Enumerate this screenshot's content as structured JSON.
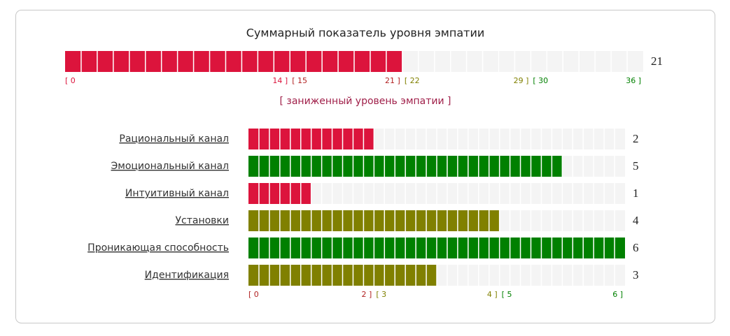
{
  "total": {
    "title": "Суммарный показатель уровня эмпатии",
    "value": 21,
    "value_label": "21",
    "scale": [
      {
        "start": {
          "value": 0,
          "label": "[ 0"
        },
        "end": {
          "value": 14,
          "label": "14 ]"
        },
        "color": "#dc143c"
      },
      {
        "start": {
          "value": 15,
          "label": "[ 15"
        },
        "end": {
          "value": 21,
          "label": "21 ]"
        },
        "color": "#b22222"
      },
      {
        "start": {
          "value": 22,
          "label": "[ 22"
        },
        "end": {
          "value": 29,
          "label": "29 ]"
        },
        "color": "#808000"
      },
      {
        "start": {
          "value": 30,
          "label": "[ 30"
        },
        "end": {
          "value": 36,
          "label": "36 ]"
        },
        "color": "#008000"
      }
    ],
    "bar_color": "#dc143c",
    "level": "[ заниженный уровень эмпатии ]",
    "level_color": "#a0204a"
  },
  "subscales": {
    "rows": [
      {
        "name": "Рациональный канал",
        "value": 2,
        "color": "#dc143c"
      },
      {
        "name": "Эмоциональный канал",
        "value": 5,
        "color": "#008000"
      },
      {
        "name": "Интуитивный канал",
        "value": 1,
        "color": "#dc143c"
      },
      {
        "name": "Установки",
        "value": 4,
        "color": "#808000"
      },
      {
        "name": "Проникающая способность",
        "value": 6,
        "color": "#008000"
      },
      {
        "name": "Идентификация",
        "value": 3,
        "color": "#808000"
      }
    ],
    "scale": [
      {
        "start": {
          "value": 0,
          "label": "[ 0"
        },
        "end": {
          "value": 2,
          "label": "2 ]"
        },
        "color": "#b22222"
      },
      {
        "start": {
          "value": 3,
          "label": "[ 3"
        },
        "end": {
          "value": 4,
          "label": "4 ]"
        },
        "color": "#808000"
      },
      {
        "start": {
          "value": 5,
          "label": "[ 5"
        },
        "end": {
          "value": 6,
          "label": "6 ]"
        },
        "color": "#008000"
      }
    ]
  }
}
